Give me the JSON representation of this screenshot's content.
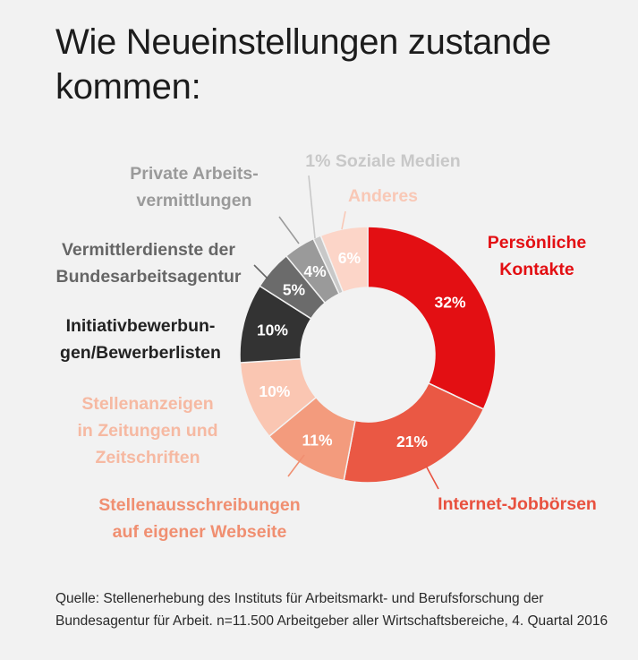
{
  "title": "Wie Neueinstellungen zustande kommen:",
  "source": "Quelle: Stellenerhebung des Instituts für Arbeitsmarkt- und Berufsforschung der Bundesagentur für Arbeit. n=11.500 Arbeitgeber aller Wirtschaftsbereiche, 4. Quartal 2016",
  "chart_data": {
    "type": "pie",
    "variant": "donut",
    "unit": "%",
    "slices": [
      {
        "label": "Persönliche Kontakte",
        "value": 32,
        "value_label": "32%",
        "color": "#e30f13",
        "label_color": "#e30f13",
        "value_label_color": "#ffffff"
      },
      {
        "label": "Internet-Jobbörsen",
        "value": 21,
        "value_label": "21%",
        "color": "#ea5844",
        "label_color": "#e8513f",
        "value_label_color": "#ffffff"
      },
      {
        "label": "Stellenausschreibungen auf eigener Webseite",
        "value": 11,
        "value_label": "11%",
        "color": "#f39b7d",
        "label_color": "#f08f71",
        "value_label_color": "#ffffff"
      },
      {
        "label": "Stellenanzeigen in Zeitungen und Zeitschriften",
        "value": 10,
        "value_label": "10%",
        "color": "#fac6b2",
        "label_color": "#f6b9a2",
        "value_label_color": "#ffffff"
      },
      {
        "label": "Initiativbewerbungen/Bewerberlisten",
        "value": 10,
        "value_label": "10%",
        "color": "#333333",
        "label_color": "#222222",
        "value_label_color": "#ffffff"
      },
      {
        "label": "Vermittlerdienste der Bundesarbeitsagentur",
        "value": 5,
        "value_label": "5%",
        "color": "#6b6b6b",
        "label_color": "#666666",
        "value_label_color": "#ffffff"
      },
      {
        "label": "Private Arbeitsvermittlungen",
        "value": 4,
        "value_label": "4%",
        "color": "#9a9a9a",
        "label_color": "#9a9a9a",
        "value_label_color": "#ffffff"
      },
      {
        "label": "Soziale Medien",
        "value": 1,
        "value_label": "1%",
        "color": "#c8c8c8",
        "label_color": "#c8c8c8",
        "value_label_color": "#c8c8c8"
      },
      {
        "label": "Anderes",
        "value": 6,
        "value_label": "6%",
        "color": "#fcd5c8",
        "label_color": "#f9c8b6",
        "value_label_color": "#ffffff"
      }
    ]
  },
  "labels": [
    {
      "lines": [
        "Persönliche",
        "Kontakte"
      ]
    },
    {
      "lines": [
        "Internet-Jobbörsen"
      ]
    },
    {
      "lines": [
        "Stellenausschreibungen",
        "auf eigener Webseite"
      ]
    },
    {
      "lines": [
        "Stellenanzeigen",
        "in Zeitungen und",
        "Zeitschriften"
      ]
    },
    {
      "lines": [
        "Initiativbewerbun-",
        "gen/Bewerberlisten"
      ]
    },
    {
      "lines": [
        "Vermittlerdienste der",
        "Bundesarbeitsagentur"
      ]
    },
    {
      "lines": [
        "Private Arbeits-",
        "vermittlungen"
      ]
    },
    {
      "lines": [
        "1% Soziale Medien"
      ]
    },
    {
      "lines": [
        "Anderes"
      ]
    }
  ]
}
